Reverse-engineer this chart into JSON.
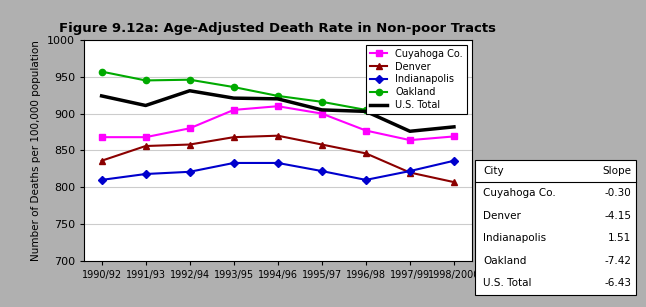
{
  "title": "Figure 9.12a: Age-Adjusted Death Rate in Non-poor Tracts",
  "ylabel": "Number of Deaths per 100,000 population",
  "x_labels": [
    "1990/92",
    "1991/93",
    "1992/94",
    "1993/95",
    "1994/96",
    "1995/97",
    "1996/98",
    "1997/99",
    "1998/2000"
  ],
  "ylim": [
    700,
    1000
  ],
  "yticks": [
    700,
    750,
    800,
    850,
    900,
    950,
    1000
  ],
  "series": [
    {
      "name": "Cuyahoga Co.",
      "values": [
        868,
        868,
        880,
        905,
        910,
        900,
        877,
        864,
        869
      ],
      "color": "#ff00ff",
      "marker": "s",
      "linewidth": 1.5
    },
    {
      "name": "Denver",
      "values": [
        836,
        856,
        858,
        868,
        870,
        858,
        846,
        820,
        807
      ],
      "color": "#8b0000",
      "marker": "^",
      "linewidth": 1.5
    },
    {
      "name": "Indianapolis",
      "values": [
        810,
        818,
        821,
        833,
        833,
        822,
        810,
        822,
        836
      ],
      "color": "#0000cd",
      "marker": "D",
      "linewidth": 1.5
    },
    {
      "name": "Oakland",
      "values": [
        957,
        945,
        946,
        936,
        924,
        916,
        905,
        910,
        910
      ],
      "color": "#00aa00",
      "marker": "o",
      "linewidth": 1.5
    },
    {
      "name": "U.S. Total",
      "values": [
        924,
        911,
        931,
        921,
        920,
        905,
        903,
        876,
        882
      ],
      "color": "#000000",
      "marker": "None",
      "linewidth": 2.5
    }
  ],
  "table_headers": [
    "City",
    "Slope"
  ],
  "table_rows": [
    [
      "Cuyahoga Co.",
      "-0.30"
    ],
    [
      "Denver",
      "-4.15"
    ],
    [
      "Indianapolis",
      "1.51"
    ],
    [
      "Oakland",
      "-7.42"
    ],
    [
      "U.S. Total",
      "-6.43"
    ]
  ],
  "bg_gray": "#b0b0b0",
  "bg_white": "#ffffff",
  "grid_color": "#cccccc"
}
